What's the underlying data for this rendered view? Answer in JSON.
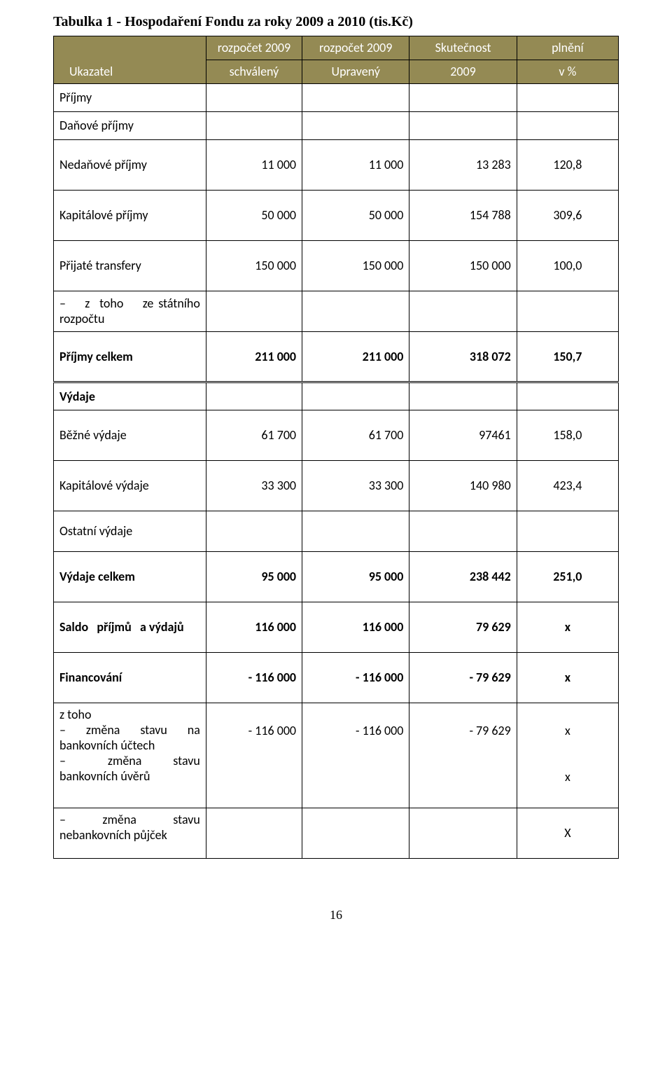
{
  "title": "Tabulka 1 - Hospodaření Fondu za roky 2009 a 2010 (tis.Kč)",
  "header_bg": "#948a54",
  "header": {
    "row1": {
      "c1": "rozpočet 2009",
      "c2": "rozpočet 2009",
      "c3": "Skutečnost",
      "c4": "plnění"
    },
    "row2": {
      "c0": "Ukazatel",
      "c1": "schválený",
      "c2": "Upravený",
      "c3": "2009",
      "c4": "v %"
    }
  },
  "rows": [
    {
      "label": "Příjmy",
      "cells": [
        "",
        "",
        "",
        ""
      ],
      "h": "short"
    },
    {
      "label": "Daňové příjmy",
      "cells": [
        "",
        "",
        "",
        ""
      ],
      "h": "short"
    },
    {
      "label": "Nedaňové příjmy",
      "cells": [
        "11 000",
        "11 000",
        "13 283",
        "120,8"
      ],
      "h": "tall"
    },
    {
      "label": "Kapitálové příjmy",
      "cells": [
        "50 000",
        "50 000",
        "154 788",
        "309,6"
      ],
      "h": "tall"
    },
    {
      "label": "Přijaté transfery",
      "cells": [
        "150 000",
        "150 000",
        "150 000",
        "100,0"
      ],
      "h": "tall"
    },
    {
      "label": "– z toho ze státního rozpočtu",
      "cells": [
        "",
        "",
        "",
        ""
      ],
      "h": "mid"
    },
    {
      "label": "Příjmy celkem",
      "cells": [
        "211 000",
        "211 000",
        "318 072",
        "150,7"
      ],
      "h": "tall",
      "bold": true
    },
    {
      "label": "Výdaje",
      "cells": [
        "",
        "",
        "",
        ""
      ],
      "h": "short",
      "bold": true,
      "dbl": true
    },
    {
      "label": "Běžné výdaje",
      "cells": [
        "61 700",
        "61 700",
        "97461",
        "158,0"
      ],
      "h": "tall"
    },
    {
      "label": "Kapitálové výdaje",
      "cells": [
        "33 300",
        "33 300",
        "140 980",
        "423,4"
      ],
      "h": "tall"
    },
    {
      "label": "Ostatní výdaje",
      "cells": [
        "",
        "",
        "",
        ""
      ],
      "h": "mid"
    },
    {
      "label": "Výdaje celkem",
      "cells": [
        "95 000",
        "95 000",
        "238 442",
        "251,0"
      ],
      "h": "tall",
      "bold": true
    },
    {
      "label": "Saldo příjmů a výdajů",
      "cells": [
        "116 000",
        "116 000",
        "79 629",
        "x"
      ],
      "h": "tall",
      "bold": true
    },
    {
      "label": "Financování",
      "cells": [
        "- 116 000",
        "- 116 000",
        "- 79 629",
        "x"
      ],
      "h": "tall",
      "bold": true
    },
    {
      "label": "z toho\n– změna stavu na bankovních účtech\n–    změna   stavu bankovních úvěrů",
      "cells": [
        "- 116 000",
        "- 116 000",
        "- 79 629",
        "x\n\n\nx"
      ],
      "h": "",
      "multi": true
    },
    {
      "label": "–   změna   stavu nebankovních půjček",
      "cells": [
        "",
        "",
        "",
        "X"
      ],
      "h": "tall"
    }
  ],
  "page_number": "16"
}
